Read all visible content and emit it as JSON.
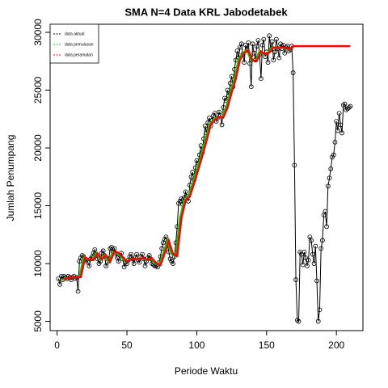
{
  "chart_data": {
    "type": "line",
    "title": "SMA N=4 Data KRL Jabodetabek",
    "x_label": "Periode Waktu",
    "y_label": "Jumlah Penumpang",
    "xlim": [
      -5,
      219
    ],
    "ylim": [
      4200,
      30700
    ],
    "xticks": [
      0,
      50,
      100,
      150,
      200
    ],
    "yticks": [
      5000,
      10000,
      15000,
      20000,
      25000,
      30000
    ],
    "legend": "top-left",
    "series": [
      {
        "name": "data aktual",
        "color": "#000000",
        "markers": true,
        "x": [
          1,
          2,
          3,
          4,
          5,
          6,
          7,
          8,
          9,
          10,
          11,
          12,
          13,
          14,
          15,
          16,
          17,
          18,
          19,
          20,
          21,
          22,
          23,
          24,
          25,
          26,
          27,
          28,
          29,
          30,
          31,
          32,
          33,
          34,
          35,
          36,
          37,
          38,
          39,
          40,
          41,
          42,
          43,
          44,
          45,
          46,
          47,
          48,
          49,
          50,
          51,
          52,
          53,
          54,
          55,
          56,
          57,
          58,
          59,
          60,
          61,
          62,
          63,
          64,
          65,
          66,
          67,
          68,
          69,
          70,
          71,
          72,
          73,
          74,
          75,
          76,
          77,
          78,
          79,
          80,
          81,
          82,
          83,
          84,
          85,
          86,
          87,
          88,
          89,
          90,
          91,
          92,
          93,
          94,
          95,
          96,
          97,
          98,
          99,
          100,
          101,
          102,
          103,
          104,
          105,
          106,
          107,
          108,
          109,
          110,
          111,
          112,
          113,
          114,
          115,
          116,
          117,
          118,
          119,
          120,
          121,
          122,
          123,
          124,
          125,
          126,
          127,
          128,
          129,
          130,
          131,
          132,
          133,
          134,
          135,
          136,
          137,
          138,
          139,
          140,
          141,
          142,
          143,
          144,
          145,
          146,
          147,
          148,
          149,
          150,
          151,
          152,
          153,
          154,
          155,
          156,
          157,
          158,
          159,
          160,
          161,
          162,
          163,
          164,
          165,
          166,
          167,
          168,
          169,
          170,
          171,
          172,
          173,
          174,
          175,
          176,
          177,
          178,
          179,
          180,
          181,
          182,
          183,
          184,
          185,
          186,
          187,
          188,
          189,
          190,
          191,
          192,
          193,
          194,
          195,
          196,
          197,
          198,
          199,
          200,
          201,
          202,
          203,
          204,
          205,
          206,
          207,
          208,
          209,
          210
        ],
        "values": [
          8700,
          8200,
          8900,
          8600,
          8900,
          8800,
          8700,
          8900,
          8800,
          8600,
          8800,
          8900,
          8700,
          8800,
          7600,
          10200,
          10500,
          10700,
          10600,
          10400,
          10300,
          10100,
          9800,
          10400,
          10600,
          10900,
          11200,
          10800,
          10400,
          10000,
          10200,
          10900,
          11100,
          10700,
          9800,
          10100,
          10400,
          11300,
          11400,
          11000,
          11300,
          10900,
          10500,
          10200,
          10700,
          10900,
          10400,
          9700,
          10100,
          10000,
          10300,
          10600,
          10800,
          10400,
          10000,
          10500,
          10800,
          10300,
          10100,
          10600,
          10800,
          10400,
          9800,
          10200,
          10500,
          10700,
          10400,
          10000,
          9900,
          9800,
          9800,
          9700,
          10100,
          10600,
          11300,
          11800,
          12100,
          12300,
          11700,
          11000,
          10400,
          10200,
          10000,
          10600,
          11800,
          13200,
          15200,
          15400,
          15600,
          15100,
          15700,
          16200,
          15800,
          15400,
          16800,
          17500,
          17900,
          17200,
          18300,
          18900,
          18700,
          19400,
          20200,
          19600,
          20800,
          21900,
          21300,
          22200,
          22600,
          21900,
          22400,
          22800,
          23000,
          22300,
          22600,
          23100,
          22800,
          22000,
          23500,
          24300,
          24100,
          25000,
          24500,
          25600,
          26200,
          25300,
          26800,
          27600,
          28400,
          27800,
          28700,
          29000,
          28100,
          27400,
          28900,
          28500,
          29100,
          27300,
          25300,
          29000,
          28200,
          27600,
          28800,
          29300,
          28100,
          26000,
          28900,
          29400,
          27900,
          28300,
          27400,
          29700,
          28500,
          29200,
          27600,
          28300,
          29400,
          28600,
          27800,
          29000,
          28600,
          28900,
          28200,
          28700,
          28800,
          28400,
          28500,
          28800,
          26500,
          18500,
          8600,
          5100,
          5000,
          11000,
          10800,
          9900,
          11000,
          10500,
          9800,
          10300,
          12300,
          12000,
          10800,
          10000,
          11500,
          8500,
          5000,
          6000,
          11300,
          12000,
          14200,
          14500,
          13200,
          16700,
          17400,
          18200,
          19200,
          19400,
          20500,
          22300,
          21500,
          23000,
          22000,
          21300,
          23700,
          23800,
          23300,
          23400,
          23500,
          23600
        ]
      },
      {
        "name": "data pemulusan",
        "color": "#00cc00",
        "markers": false,
        "x": [
          4,
          7,
          10,
          13,
          16,
          19,
          22,
          25,
          28,
          31,
          34,
          37,
          40,
          43,
          46,
          49,
          52,
          55,
          58,
          61,
          64,
          67,
          70,
          73,
          76,
          79,
          82,
          85,
          88,
          91,
          94,
          97,
          100,
          103,
          106,
          109,
          112,
          115,
          118,
          121,
          124,
          127,
          130,
          133,
          136,
          139,
          142,
          145,
          148,
          151,
          154,
          157,
          160,
          163,
          166,
          168
        ],
        "values": [
          8600,
          8750,
          8750,
          8800,
          8825,
          10500,
          10350,
          10300,
          10875,
          10350,
          10725,
          10150,
          11025,
          10925,
          10575,
          10175,
          10350,
          10375,
          10400,
          10450,
          10300,
          10450,
          10025,
          9850,
          10850,
          11975,
          10825,
          10650,
          13900,
          15450,
          15775,
          16900,
          18075,
          19300,
          20625,
          22000,
          22425,
          22675,
          22625,
          23475,
          24800,
          25975,
          27650,
          28200,
          28450,
          27550,
          27525,
          28350,
          28100,
          28250,
          28700,
          28625,
          28700,
          28650,
          28525,
          28650
        ]
      },
      {
        "name": "data peramalan",
        "color": "#ff0000",
        "markers": false,
        "x": [
          5,
          8,
          11,
          14,
          17,
          20,
          23,
          26,
          29,
          32,
          35,
          38,
          41,
          44,
          47,
          50,
          53,
          56,
          59,
          62,
          65,
          68,
          71,
          74,
          77,
          80,
          83,
          86,
          89,
          92,
          95,
          98,
          101,
          104,
          107,
          110,
          113,
          116,
          119,
          122,
          125,
          128,
          131,
          134,
          137,
          140,
          143,
          146,
          149,
          152,
          155,
          158,
          161,
          164,
          167,
          169,
          210
        ],
        "values": [
          8600,
          8750,
          8750,
          8800,
          8825,
          10500,
          10350,
          10300,
          10875,
          10350,
          10725,
          10150,
          11025,
          10925,
          10575,
          10175,
          10350,
          10375,
          10400,
          10450,
          10300,
          10450,
          10025,
          9850,
          10850,
          11975,
          10825,
          10650,
          13900,
          15450,
          15775,
          16900,
          18075,
          19300,
          20625,
          22000,
          22425,
          22675,
          22625,
          23475,
          24800,
          25975,
          27650,
          28200,
          28450,
          27550,
          27525,
          28350,
          28100,
          28250,
          28700,
          28625,
          28700,
          28650,
          28525,
          28800,
          28800
        ]
      }
    ]
  }
}
